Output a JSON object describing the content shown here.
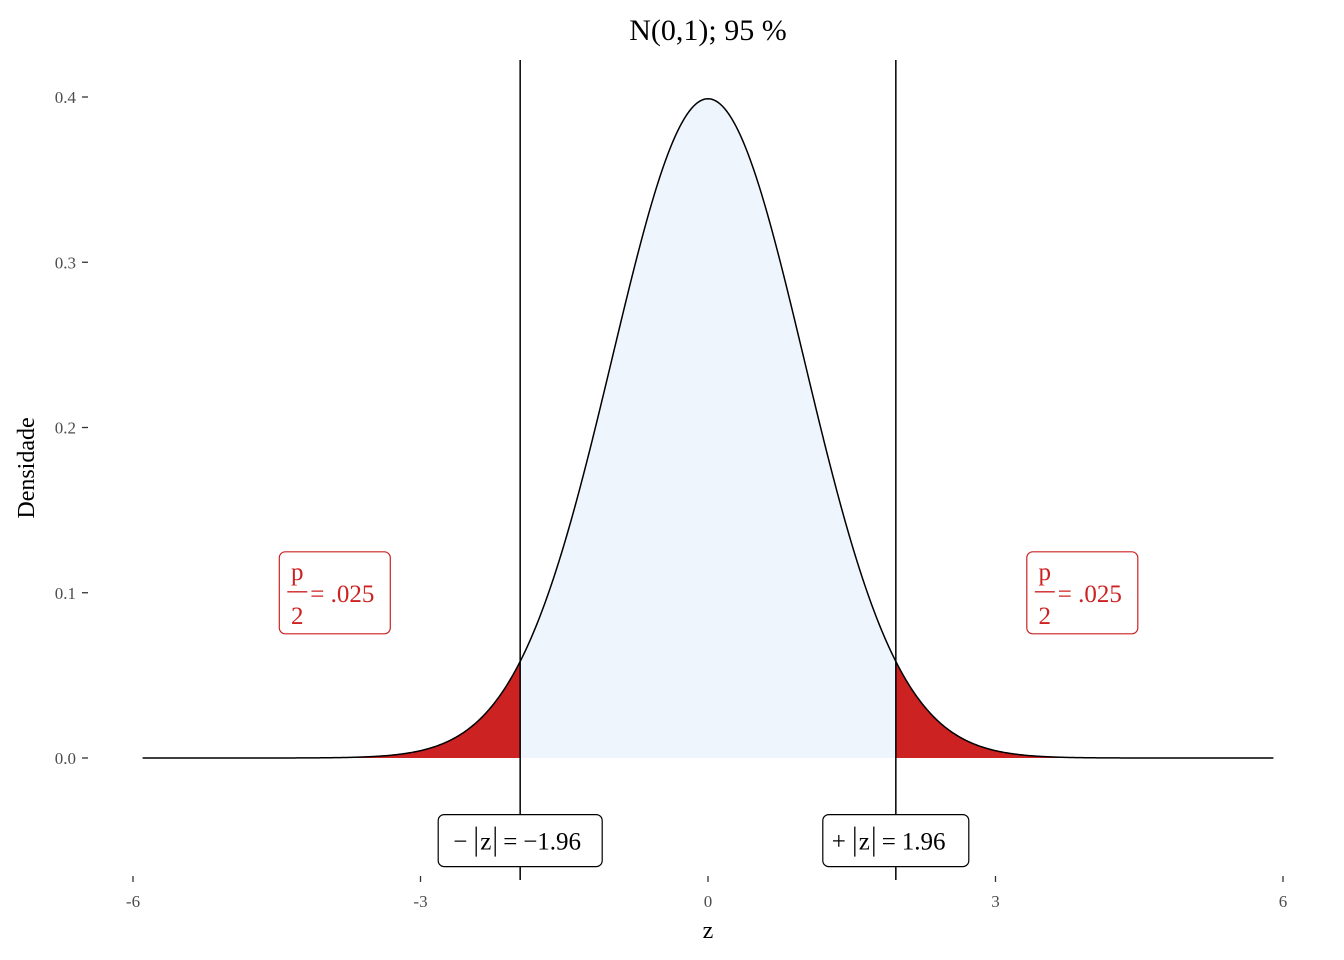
{
  "chart_data": {
    "type": "area",
    "title": "N(0,1); 95 %",
    "xlabel": "z",
    "ylabel": "Densidade",
    "xlim": [
      -6,
      6
    ],
    "ylim": [
      0,
      0.4
    ],
    "x_ticks": [
      -6,
      -3,
      0,
      3,
      6
    ],
    "x_tick_labels": [
      "-6",
      "-3",
      "0",
      "3",
      "6"
    ],
    "y_ticks": [
      0.0,
      0.1,
      0.2,
      0.3,
      0.4
    ],
    "y_tick_labels": [
      "0.0",
      "0.1",
      "0.2",
      "0.3",
      "0.4"
    ],
    "distribution": {
      "name": "N(0,1)",
      "mean": 0,
      "sd": 1
    },
    "curve_x_range": [
      -5.9,
      5.9
    ],
    "critical_values": [
      -1.96,
      1.96
    ],
    "grid": false,
    "colors": {
      "tail_fill": "#cc2222",
      "center_fill": "#eef5fd",
      "curve": "#000000",
      "annotation_red": "#cc2222"
    },
    "annotations": {
      "left_z": {
        "sign": "−",
        "var": "z",
        "eq": "=",
        "value": "−1.96",
        "x": -1.96,
        "y": -0.05
      },
      "right_z": {
        "sign": "+",
        "var": "z",
        "eq": "=",
        "value": "1.96",
        "x": 1.96,
        "y": -0.05
      },
      "left_p": {
        "num": "p",
        "den": "2",
        "value": "= .025",
        "x": -3.9,
        "y": 0.1
      },
      "right_p": {
        "num": "p",
        "den": "2",
        "value": "= .025",
        "x": 3.9,
        "y": 0.1
      }
    }
  }
}
